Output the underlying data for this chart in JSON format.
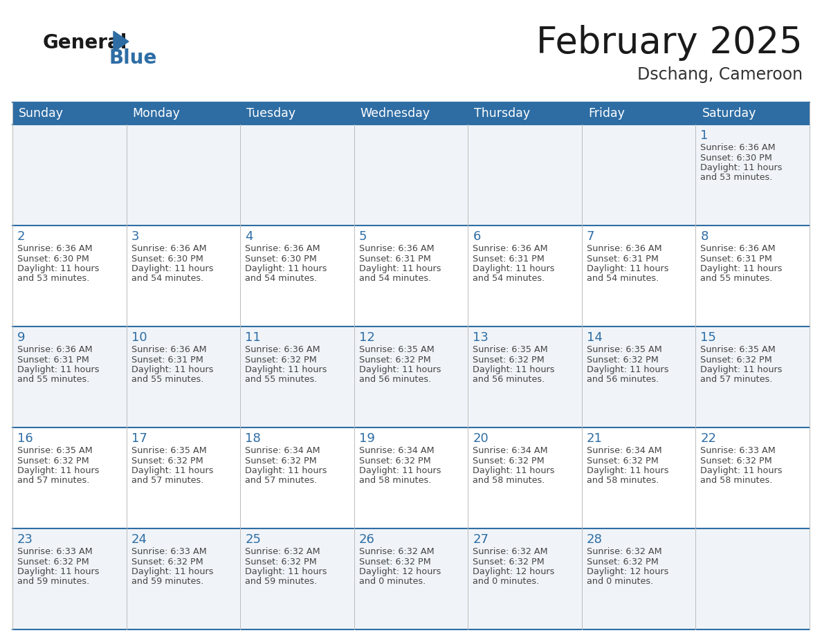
{
  "title": "February 2025",
  "subtitle": "Dschang, Cameroon",
  "header_bg": "#2E6DA4",
  "header_text": "#FFFFFF",
  "day_names": [
    "Sunday",
    "Monday",
    "Tuesday",
    "Wednesday",
    "Thursday",
    "Friday",
    "Saturday"
  ],
  "cell_bg_even": "#F0F4F8",
  "cell_bg_odd": "#FFFFFF",
  "number_color": "#2E6DA4",
  "text_color": "#444444",
  "line_color": "#2E6DA4",
  "grid_line_color": "#AAAAAA",
  "logo_general_color": "#1A1A1A",
  "logo_blue_color": "#2E6DA4",
  "title_color": "#1A1A1A",
  "subtitle_color": "#333333",
  "days": [
    {
      "day": 1,
      "col": 6,
      "row": 0,
      "sunrise": "6:36 AM",
      "sunset": "6:30 PM",
      "daylight_h": "11 hours",
      "daylight_m": "and 53 minutes."
    },
    {
      "day": 2,
      "col": 0,
      "row": 1,
      "sunrise": "6:36 AM",
      "sunset": "6:30 PM",
      "daylight_h": "11 hours",
      "daylight_m": "and 53 minutes."
    },
    {
      "day": 3,
      "col": 1,
      "row": 1,
      "sunrise": "6:36 AM",
      "sunset": "6:30 PM",
      "daylight_h": "11 hours",
      "daylight_m": "and 54 minutes."
    },
    {
      "day": 4,
      "col": 2,
      "row": 1,
      "sunrise": "6:36 AM",
      "sunset": "6:30 PM",
      "daylight_h": "11 hours",
      "daylight_m": "and 54 minutes."
    },
    {
      "day": 5,
      "col": 3,
      "row": 1,
      "sunrise": "6:36 AM",
      "sunset": "6:31 PM",
      "daylight_h": "11 hours",
      "daylight_m": "and 54 minutes."
    },
    {
      "day": 6,
      "col": 4,
      "row": 1,
      "sunrise": "6:36 AM",
      "sunset": "6:31 PM",
      "daylight_h": "11 hours",
      "daylight_m": "and 54 minutes."
    },
    {
      "day": 7,
      "col": 5,
      "row": 1,
      "sunrise": "6:36 AM",
      "sunset": "6:31 PM",
      "daylight_h": "11 hours",
      "daylight_m": "and 54 minutes."
    },
    {
      "day": 8,
      "col": 6,
      "row": 1,
      "sunrise": "6:36 AM",
      "sunset": "6:31 PM",
      "daylight_h": "11 hours",
      "daylight_m": "and 55 minutes."
    },
    {
      "day": 9,
      "col": 0,
      "row": 2,
      "sunrise": "6:36 AM",
      "sunset": "6:31 PM",
      "daylight_h": "11 hours",
      "daylight_m": "and 55 minutes."
    },
    {
      "day": 10,
      "col": 1,
      "row": 2,
      "sunrise": "6:36 AM",
      "sunset": "6:31 PM",
      "daylight_h": "11 hours",
      "daylight_m": "and 55 minutes."
    },
    {
      "day": 11,
      "col": 2,
      "row": 2,
      "sunrise": "6:36 AM",
      "sunset": "6:32 PM",
      "daylight_h": "11 hours",
      "daylight_m": "and 55 minutes."
    },
    {
      "day": 12,
      "col": 3,
      "row": 2,
      "sunrise": "6:35 AM",
      "sunset": "6:32 PM",
      "daylight_h": "11 hours",
      "daylight_m": "and 56 minutes."
    },
    {
      "day": 13,
      "col": 4,
      "row": 2,
      "sunrise": "6:35 AM",
      "sunset": "6:32 PM",
      "daylight_h": "11 hours",
      "daylight_m": "and 56 minutes."
    },
    {
      "day": 14,
      "col": 5,
      "row": 2,
      "sunrise": "6:35 AM",
      "sunset": "6:32 PM",
      "daylight_h": "11 hours",
      "daylight_m": "and 56 minutes."
    },
    {
      "day": 15,
      "col": 6,
      "row": 2,
      "sunrise": "6:35 AM",
      "sunset": "6:32 PM",
      "daylight_h": "11 hours",
      "daylight_m": "and 57 minutes."
    },
    {
      "day": 16,
      "col": 0,
      "row": 3,
      "sunrise": "6:35 AM",
      "sunset": "6:32 PM",
      "daylight_h": "11 hours",
      "daylight_m": "and 57 minutes."
    },
    {
      "day": 17,
      "col": 1,
      "row": 3,
      "sunrise": "6:35 AM",
      "sunset": "6:32 PM",
      "daylight_h": "11 hours",
      "daylight_m": "and 57 minutes."
    },
    {
      "day": 18,
      "col": 2,
      "row": 3,
      "sunrise": "6:34 AM",
      "sunset": "6:32 PM",
      "daylight_h": "11 hours",
      "daylight_m": "and 57 minutes."
    },
    {
      "day": 19,
      "col": 3,
      "row": 3,
      "sunrise": "6:34 AM",
      "sunset": "6:32 PM",
      "daylight_h": "11 hours",
      "daylight_m": "and 58 minutes."
    },
    {
      "day": 20,
      "col": 4,
      "row": 3,
      "sunrise": "6:34 AM",
      "sunset": "6:32 PM",
      "daylight_h": "11 hours",
      "daylight_m": "and 58 minutes."
    },
    {
      "day": 21,
      "col": 5,
      "row": 3,
      "sunrise": "6:34 AM",
      "sunset": "6:32 PM",
      "daylight_h": "11 hours",
      "daylight_m": "and 58 minutes."
    },
    {
      "day": 22,
      "col": 6,
      "row": 3,
      "sunrise": "6:33 AM",
      "sunset": "6:32 PM",
      "daylight_h": "11 hours",
      "daylight_m": "and 58 minutes."
    },
    {
      "day": 23,
      "col": 0,
      "row": 4,
      "sunrise": "6:33 AM",
      "sunset": "6:32 PM",
      "daylight_h": "11 hours",
      "daylight_m": "and 59 minutes."
    },
    {
      "day": 24,
      "col": 1,
      "row": 4,
      "sunrise": "6:33 AM",
      "sunset": "6:32 PM",
      "daylight_h": "11 hours",
      "daylight_m": "and 59 minutes."
    },
    {
      "day": 25,
      "col": 2,
      "row": 4,
      "sunrise": "6:32 AM",
      "sunset": "6:32 PM",
      "daylight_h": "11 hours",
      "daylight_m": "and 59 minutes."
    },
    {
      "day": 26,
      "col": 3,
      "row": 4,
      "sunrise": "6:32 AM",
      "sunset": "6:32 PM",
      "daylight_h": "12 hours",
      "daylight_m": "and 0 minutes."
    },
    {
      "day": 27,
      "col": 4,
      "row": 4,
      "sunrise": "6:32 AM",
      "sunset": "6:32 PM",
      "daylight_h": "12 hours",
      "daylight_m": "and 0 minutes."
    },
    {
      "day": 28,
      "col": 5,
      "row": 4,
      "sunrise": "6:32 AM",
      "sunset": "6:32 PM",
      "daylight_h": "12 hours",
      "daylight_m": "and 0 minutes."
    }
  ]
}
